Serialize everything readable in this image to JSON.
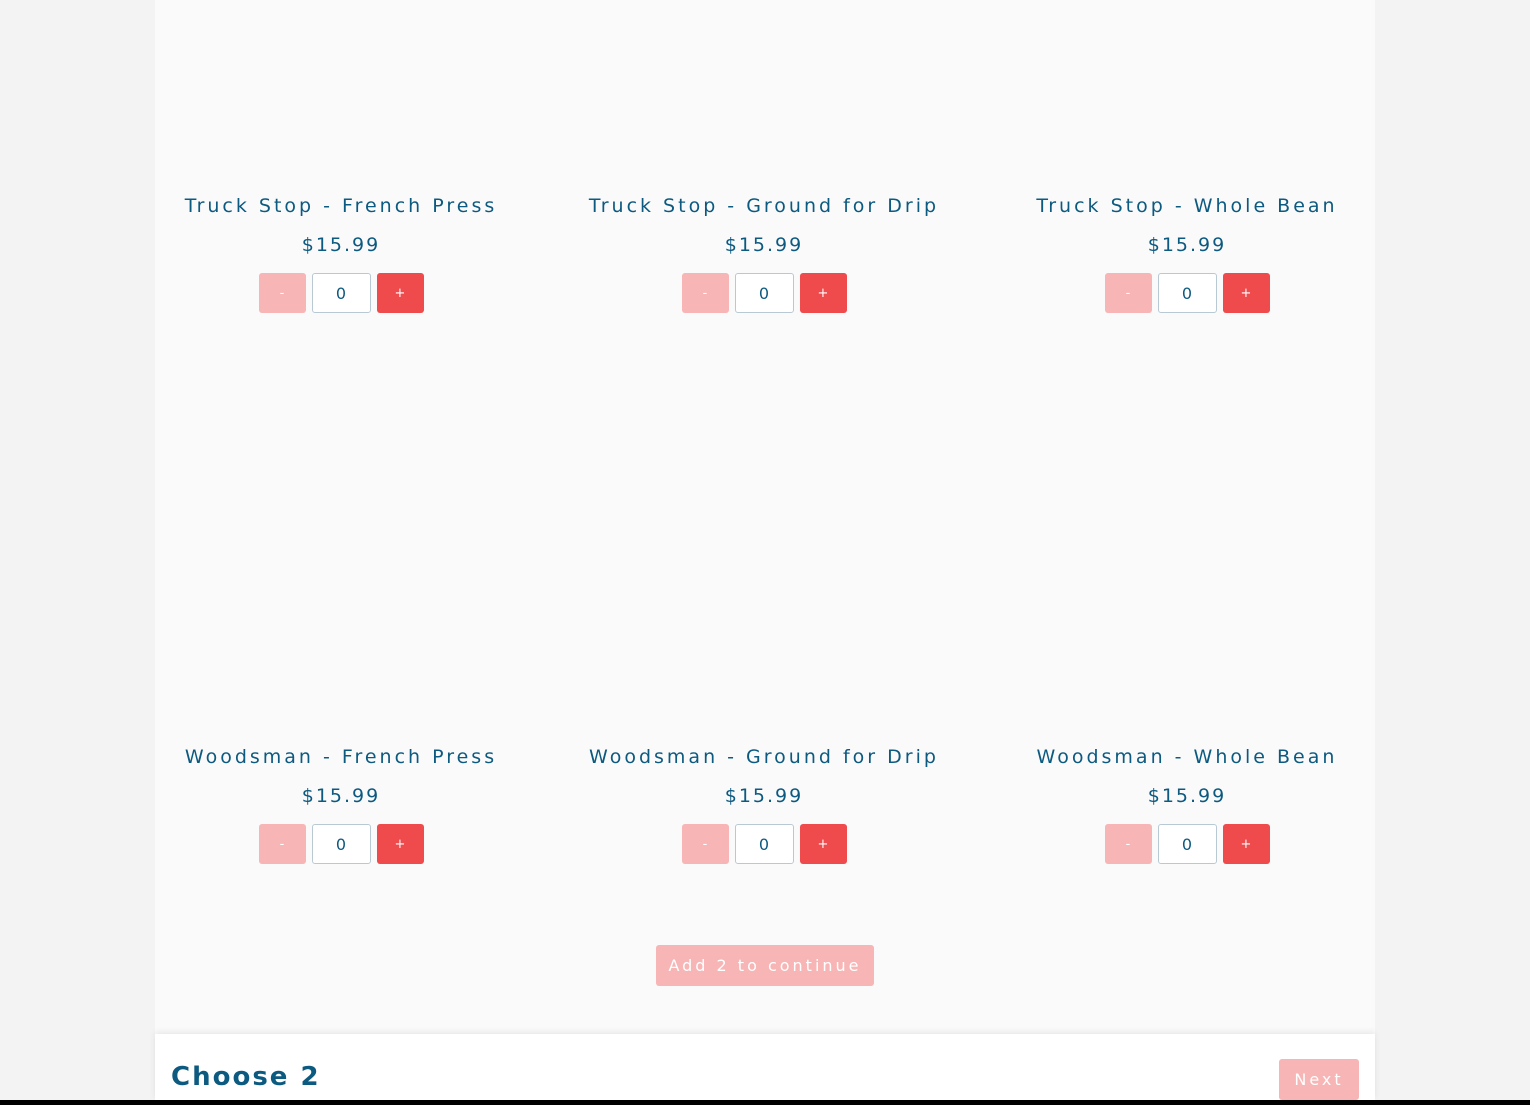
{
  "products": [
    {
      "name": "Truck Stop - French Press",
      "price": "$15.99",
      "quantity": "0",
      "minus": "-",
      "plus": "+"
    },
    {
      "name": "Truck Stop - Ground for Drip",
      "price": "$15.99",
      "quantity": "0",
      "minus": "-",
      "plus": "+"
    },
    {
      "name": "Truck Stop - Whole Bean",
      "price": "$15.99",
      "quantity": "0",
      "minus": "-",
      "plus": "+"
    },
    {
      "name": "Woodsman - French Press",
      "price": "$15.99",
      "quantity": "0",
      "minus": "-",
      "plus": "+"
    },
    {
      "name": "Woodsman - Ground for Drip",
      "price": "$15.99",
      "quantity": "0",
      "minus": "-",
      "plus": "+"
    },
    {
      "name": "Woodsman - Whole Bean",
      "price": "$15.99",
      "quantity": "0",
      "minus": "-",
      "plus": "+"
    }
  ],
  "add_button": "Add 2 to continue",
  "footer": {
    "title": "Choose 2",
    "next": "Next"
  },
  "colors": {
    "text": "#0d5a80",
    "accent": "#ef4a4c",
    "disabled": "#f7b5b5"
  }
}
